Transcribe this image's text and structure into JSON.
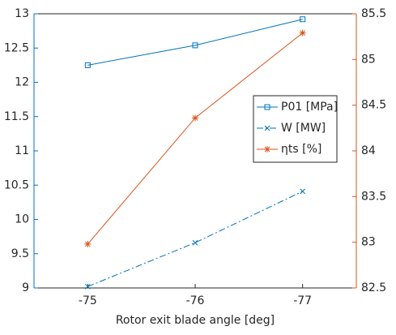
{
  "chart_data": {
    "type": "line",
    "xlabel": "Rotor exit blade angle [deg]",
    "xlim": [
      -74.5,
      -77.5
    ],
    "xticks": [
      -75,
      -76,
      -77
    ],
    "ylim": [
      9,
      13
    ],
    "yticks": [
      9,
      9.5,
      10,
      10.5,
      11,
      11.5,
      12,
      12.5,
      13
    ],
    "y2lim": [
      82.5,
      85.5
    ],
    "y2ticks": [
      82.5,
      83,
      83.5,
      84,
      84.5,
      85,
      85.5
    ],
    "y_color": "#0072bd",
    "y2_color": "#d95319",
    "legend": "right",
    "x": [
      -75,
      -76,
      -77
    ],
    "series": [
      {
        "name": "P01 [MPa]",
        "color": "#0072bd",
        "marker": "square",
        "dash": "solid",
        "values": [
          12.25,
          12.54,
          12.92
        ]
      },
      {
        "name": "W [MW]",
        "color": "#0072bd",
        "marker": "x",
        "dash": "dashdot",
        "values": [
          9.02,
          9.66,
          10.41
        ]
      },
      {
        "name": "ηts [%]",
        "color": "#d95319",
        "marker": "star",
        "dash": "solid",
        "axis": "y2",
        "values": [
          82.98,
          84.36,
          85.29
        ]
      }
    ]
  }
}
